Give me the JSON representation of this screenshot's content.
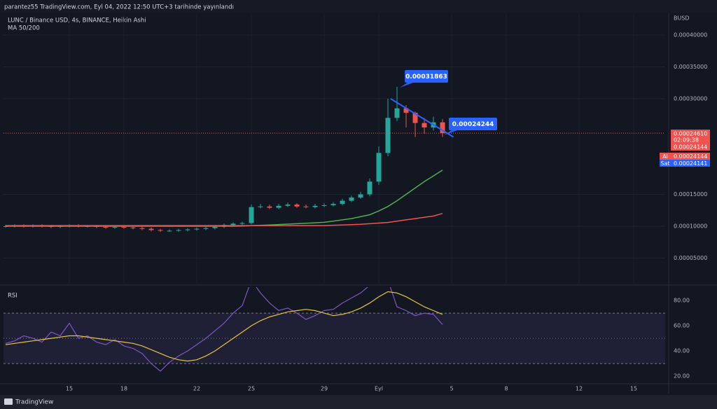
{
  "header": "parantez55 TradingView.com, Eyl 04, 2022 12:50 UTC+3 tarihinde yayınlandı",
  "footer": "TradingView",
  "chart_data": [
    {
      "type": "candlestick",
      "title": "LUNC / Binance USD, 4s, BINANCE, Heikin Ashi",
      "subtitle": "MA 50/200",
      "currency": "BUSD",
      "up_color": "#26a69a",
      "down_color": "#ef5350",
      "xlim": [
        -0.23,
        72.46
      ],
      "ylim": [
        9.9e-06,
        0.000433
      ],
      "yticks": [
        {
          "value": 5e-05,
          "label": "0.00005000"
        },
        {
          "value": 0.0001,
          "label": "0.00010000"
        },
        {
          "value": 0.00015,
          "label": "0.00015000"
        },
        {
          "value": 0.0003,
          "label": "0.00030000"
        },
        {
          "value": 0.00035,
          "label": "0.00035000"
        },
        {
          "value": 0.0004,
          "label": "0.00040000"
        }
      ],
      "open": [
        0.0001,
        0.0001,
        0.000101,
        0.0001,
        0.000101,
        0.0001,
        9.9e-05,
        0.0001,
        0.000101,
        0.0001,
        0.0001,
        9.9e-05,
        9.8e-05,
        9.9e-05,
        9.8e-05,
        9.7e-05,
        9.6e-05,
        9.4e-05,
        9.3e-05,
        9.3e-05,
        9.4e-05,
        9.5e-05,
        9.6e-05,
        9.7e-05,
        9.9e-05,
        0.000102,
        0.000104,
        0.000105,
        0.00013,
        0.000131,
        0.000129,
        0.000132,
        0.000134,
        0.000131,
        0.00013,
        0.000132,
        0.000133,
        0.000135,
        0.00014,
        0.000145,
        0.00015,
        0.00017,
        0.000215,
        0.00027,
        0.000285,
        0.000278,
        0.000262,
        0.000255,
        0.000263
      ],
      "high": [
        0.000102,
        0.000103,
        0.000103,
        0.000103,
        0.000103,
        0.000102,
        0.000102,
        0.000103,
        0.000103,
        0.000102,
        0.000102,
        0.000101,
        0.000101,
        0.000101,
        0.0001,
        9.9e-05,
        9.8e-05,
        9.6e-05,
        9.5e-05,
        9.6e-05,
        9.7e-05,
        9.8e-05,
        9.9e-05,
        0.000101,
        0.000104,
        0.000106,
        0.000107,
        0.000134,
        0.000135,
        0.000134,
        0.000135,
        0.000137,
        0.000136,
        0.000134,
        0.000135,
        0.000136,
        0.000138,
        0.000143,
        0.000148,
        0.000154,
        0.000175,
        0.000225,
        0.0003,
        0.00031863,
        0.00029,
        0.00028,
        0.00027,
        0.000272,
        0.000268
      ],
      "low": [
        9.8e-05,
        9.8e-05,
        9.8e-05,
        9.8e-05,
        9.8e-05,
        9.7e-05,
        9.7e-05,
        9.8e-05,
        9.8e-05,
        9.8e-05,
        9.7e-05,
        9.6e-05,
        9.6e-05,
        9.6e-05,
        9.5e-05,
        9.4e-05,
        9.2e-05,
        9.1e-05,
        9.1e-05,
        9.1e-05,
        9.2e-05,
        9.3e-05,
        9.4e-05,
        9.5e-05,
        9.7e-05,
        0.0001,
        0.000102,
        0.000103,
        0.000128,
        0.000127,
        0.000127,
        0.00013,
        0.000129,
        0.000128,
        0.000128,
        0.00013,
        0.000131,
        0.000133,
        0.000138,
        0.000143,
        0.000147,
        0.000165,
        0.00021,
        0.000265,
        0.000255,
        0.00024,
        0.000245,
        0.00025,
        0.00024
      ],
      "close": [
        0.0001,
        0.000101,
        0.0001,
        0.000101,
        0.0001,
        9.9e-05,
        0.0001,
        0.000101,
        0.0001,
        0.0001,
        9.9e-05,
        9.8e-05,
        9.9e-05,
        9.8e-05,
        9.7e-05,
        9.6e-05,
        9.4e-05,
        9.3e-05,
        9.3e-05,
        9.4e-05,
        9.5e-05,
        9.6e-05,
        9.7e-05,
        9.9e-05,
        0.000102,
        0.000104,
        0.000105,
        0.00013,
        0.000131,
        0.000129,
        0.000132,
        0.000134,
        0.000131,
        0.00013,
        0.000132,
        0.000133,
        0.000135,
        0.00014,
        0.000145,
        0.00015,
        0.00017,
        0.000215,
        0.00027,
        0.000285,
        0.000278,
        0.000262,
        0.000255,
        0.000263,
        0.000246
      ],
      "lines": [
        {
          "color": "#4caf50",
          "values": [
            0.0001,
            0.0001,
            0.0001,
            0.0001,
            0.0001,
            0.0001,
            0.0001,
            0.0001,
            0.0001,
            0.0001,
            0.0001,
            0.0001,
            0.0001,
            0.0001,
            0.0001,
            0.0001,
            0.0001,
            0.0001,
            0.0001,
            0.0001,
            0.0001,
            0.0001,
            0.0001,
            0.0001,
            0.0001,
            0.0001,
            0.0001002,
            0.0001008,
            0.0001014,
            0.000102,
            0.0001026,
            0.0001033,
            0.000104,
            0.0001047,
            0.0001054,
            0.0001062,
            0.000108,
            0.00011,
            0.000112,
            0.000115,
            0.000118,
            0.000124,
            0.000131,
            0.00014,
            0.00015,
            0.00016,
            0.00017,
            0.000179,
            0.000188
          ]
        },
        {
          "color": "#f05350",
          "values": [
            0.000101,
            0.000101,
            0.000101,
            0.000101,
            0.000101,
            0.000101,
            0.000101,
            0.000101,
            0.000101,
            0.000101,
            0.000101,
            0.000101,
            0.000101,
            0.000101,
            0.000101,
            0.000101,
            0.000101,
            0.000101,
            0.000101,
            0.000101,
            0.000101,
            0.000101,
            0.000101,
            0.000101,
            0.000101,
            0.000101,
            0.000101,
            0.000101,
            0.000101,
            0.000101,
            0.000101,
            0.000101,
            0.000101,
            0.000101,
            0.000101,
            0.000101,
            0.0001015,
            0.000102,
            0.0001025,
            0.000103,
            0.000104,
            0.000105,
            0.000106,
            0.000108,
            0.00011,
            0.000112,
            0.000114,
            0.000116,
            0.00012
          ]
        }
      ],
      "trendline": {
        "color": "#2962ff",
        "x": [
          42.3,
          49.2
        ],
        "y": [
          0.0003,
          0.00024
        ]
      },
      "annotations": [
        {
          "value": 0.00031863,
          "label": "0.00031863"
        },
        {
          "value": 0.00024244,
          "label": "0.00024244"
        }
      ],
      "last_price": {
        "value": 0.0002461,
        "label": "0.00024610"
      },
      "countdown": "02:09:38",
      "last_close": {
        "value": 0.00024144,
        "label": "0.00024144"
      },
      "bid": {
        "name": "Al",
        "value": 0.00024144,
        "label": "0.00024144"
      },
      "ask": {
        "name": "Sat",
        "value": 0.00024141,
        "label": "0.00024141"
      }
    },
    {
      "type": "line",
      "title": "RSI",
      "xlim": [
        -0.23,
        72.46
      ],
      "xticks": [
        {
          "value": 7,
          "label": "15"
        },
        {
          "value": 13,
          "label": "18"
        },
        {
          "value": 21,
          "label": "22"
        },
        {
          "value": 27,
          "label": "25"
        },
        {
          "value": 35,
          "label": "29"
        },
        {
          "value": 41,
          "label": "Eyl"
        },
        {
          "value": 49,
          "label": "5"
        },
        {
          "value": 55,
          "label": "8"
        },
        {
          "value": 63,
          "label": "12"
        },
        {
          "value": 69,
          "label": "15"
        }
      ],
      "ylim": [
        15.6,
        90.6
      ],
      "yticks": [
        {
          "value": 20,
          "label": "20.00"
        },
        {
          "value": 40,
          "label": "40.00"
        },
        {
          "value": 60,
          "label": "60.00"
        },
        {
          "value": 80,
          "label": "80.00"
        }
      ],
      "bands": [
        70,
        50,
        30
      ],
      "series": [
        {
          "color": "#7e57c2",
          "values": [
            46,
            48,
            52,
            50,
            47,
            55,
            52,
            62,
            50,
            52,
            47,
            45,
            49,
            44,
            42,
            38,
            30,
            24,
            31,
            36,
            40,
            45,
            50,
            56,
            62,
            70,
            76,
            96,
            86,
            78,
            72,
            74,
            70,
            65,
            68,
            72,
            73,
            78,
            82,
            86,
            92,
            100,
            96,
            75,
            72,
            68,
            70,
            69,
            61
          ]
        },
        {
          "color": "#e8c53a",
          "values": [
            45,
            46,
            47,
            48,
            49,
            50,
            51,
            52,
            52,
            51,
            50,
            49,
            48,
            47,
            46,
            44,
            41,
            38,
            35,
            33,
            32,
            33,
            36,
            40,
            45,
            50,
            55,
            60,
            64,
            67,
            69,
            71,
            72,
            73,
            72,
            70,
            68,
            69,
            71,
            74,
            78,
            83,
            87,
            86,
            83,
            79,
            75,
            72,
            69
          ]
        }
      ]
    }
  ]
}
